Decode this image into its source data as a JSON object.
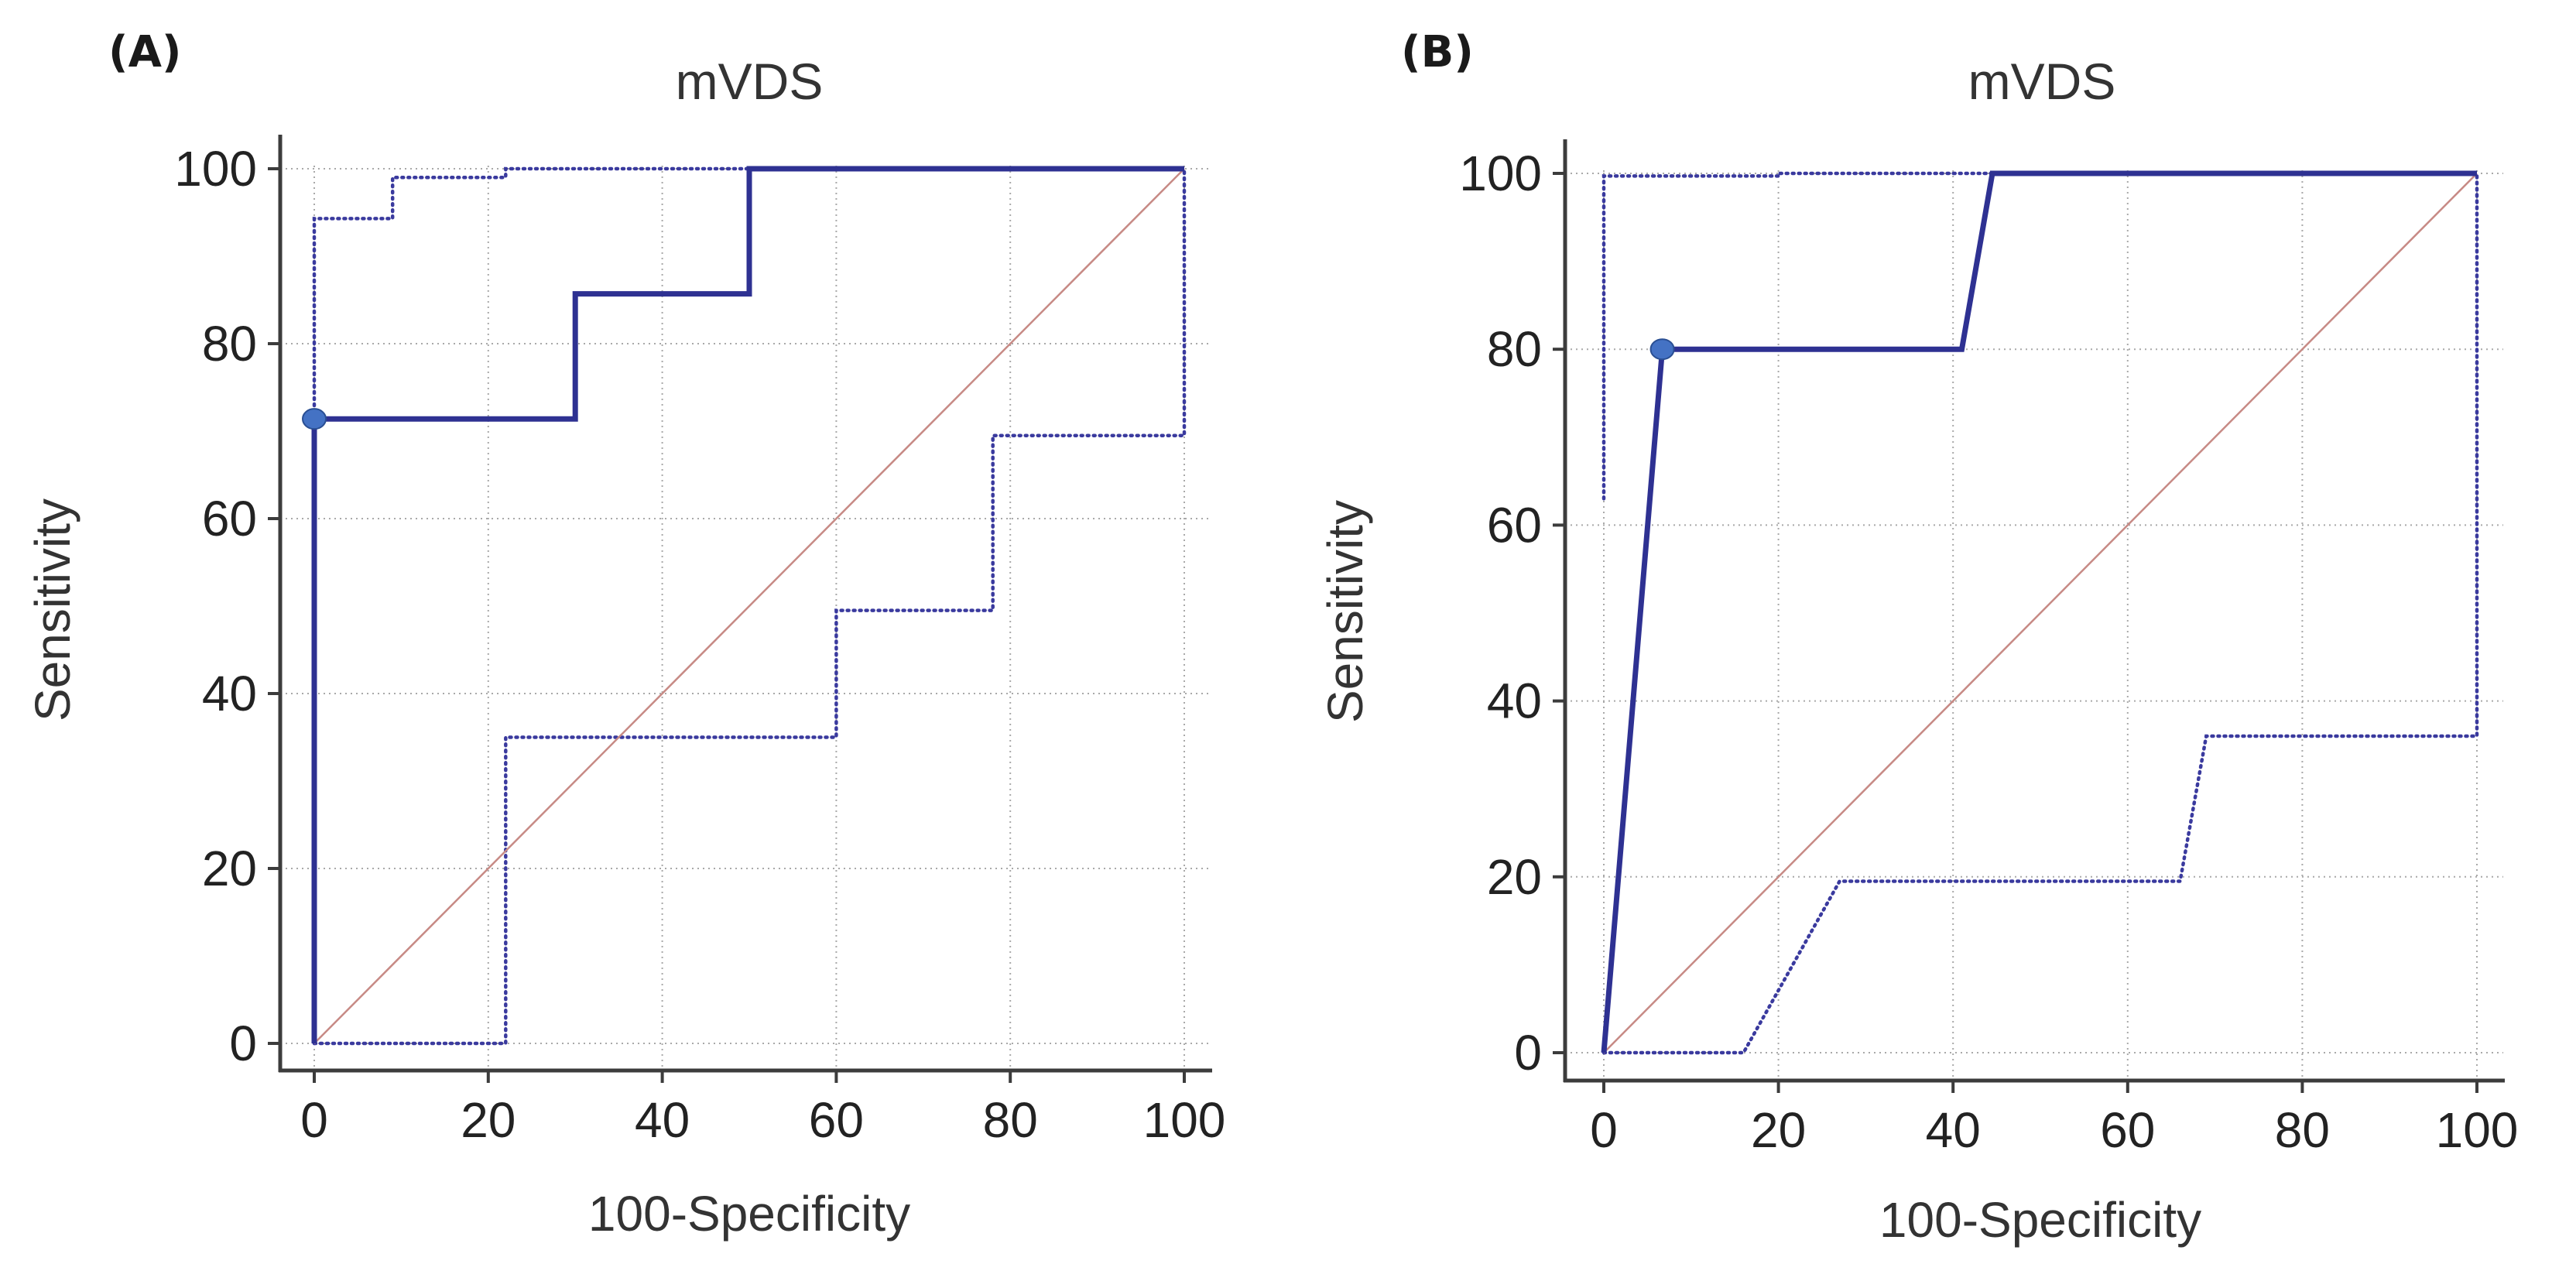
{
  "colors": {
    "roc": "#2e3192",
    "ci": "#3a3a9e",
    "reference": "#c78a85",
    "point": "#4472c4",
    "point_stroke": "#2a4f93"
  },
  "chart_data": [
    {
      "panel_label": "(A)",
      "type": "line",
      "title": "mVDS",
      "xlabel": "100-Specificity",
      "ylabel": "Sensitivity",
      "xlim": [
        0,
        100
      ],
      "ylim": [
        0,
        100
      ],
      "ticks": [
        0,
        20,
        40,
        60,
        80,
        100
      ],
      "grid": true,
      "series": [
        {
          "name": "ROC curve",
          "style": "solid",
          "points": [
            [
              0,
              0
            ],
            [
              0,
              71.4
            ],
            [
              30,
              71.4
            ],
            [
              30,
              85.7
            ],
            [
              50,
              85.7
            ],
            [
              50,
              100
            ],
            [
              100,
              100
            ]
          ]
        },
        {
          "name": "95% CI upper",
          "style": "dotted",
          "points": [
            [
              0,
              0
            ],
            [
              0,
              94.3
            ],
            [
              9,
              94.3
            ],
            [
              9,
              99
            ],
            [
              22,
              99
            ],
            [
              22,
              100
            ],
            [
              100,
              100
            ]
          ]
        },
        {
          "name": "95% CI lower",
          "style": "dotted",
          "points": [
            [
              0,
              0
            ],
            [
              22,
              0
            ],
            [
              22,
              35
            ],
            [
              60,
              35
            ],
            [
              60,
              49.5
            ],
            [
              78,
              49.5
            ],
            [
              78,
              69.5
            ],
            [
              100,
              69.5
            ],
            [
              100,
              100
            ]
          ]
        },
        {
          "name": "Reference line",
          "style": "thin",
          "points": [
            [
              0,
              0
            ],
            [
              100,
              100
            ]
          ]
        }
      ],
      "optimal_point": [
        0,
        71.4
      ]
    },
    {
      "panel_label": "(B)",
      "type": "line",
      "title": "mVDS",
      "xlabel": "100-Specificity",
      "ylabel": "Sensitivity",
      "xlim": [
        0,
        100
      ],
      "ylim": [
        0,
        100
      ],
      "ticks": [
        0,
        20,
        40,
        60,
        80,
        100
      ],
      "grid": true,
      "series": [
        {
          "name": "ROC curve",
          "style": "solid",
          "points": [
            [
              0,
              0
            ],
            [
              6.7,
              80
            ],
            [
              41,
              80
            ],
            [
              44.5,
              100
            ],
            [
              100,
              100
            ]
          ]
        },
        {
          "name": "95% CI upper",
          "style": "dotted",
          "points": [
            [
              0,
              63
            ],
            [
              0,
              99.7
            ],
            [
              20,
              99.7
            ],
            [
              20,
              100
            ],
            [
              100,
              100
            ]
          ]
        },
        {
          "name": "95% CI lower",
          "style": "dotted",
          "points": [
            [
              0,
              0
            ],
            [
              16,
              0
            ],
            [
              27,
              19.5
            ],
            [
              66,
              19.5
            ],
            [
              69,
              36
            ],
            [
              100,
              36
            ],
            [
              100,
              100
            ]
          ]
        },
        {
          "name": "Reference line",
          "style": "thin",
          "points": [
            [
              0,
              0
            ],
            [
              100,
              100
            ]
          ]
        }
      ],
      "optimal_point": [
        6.7,
        80
      ]
    }
  ]
}
